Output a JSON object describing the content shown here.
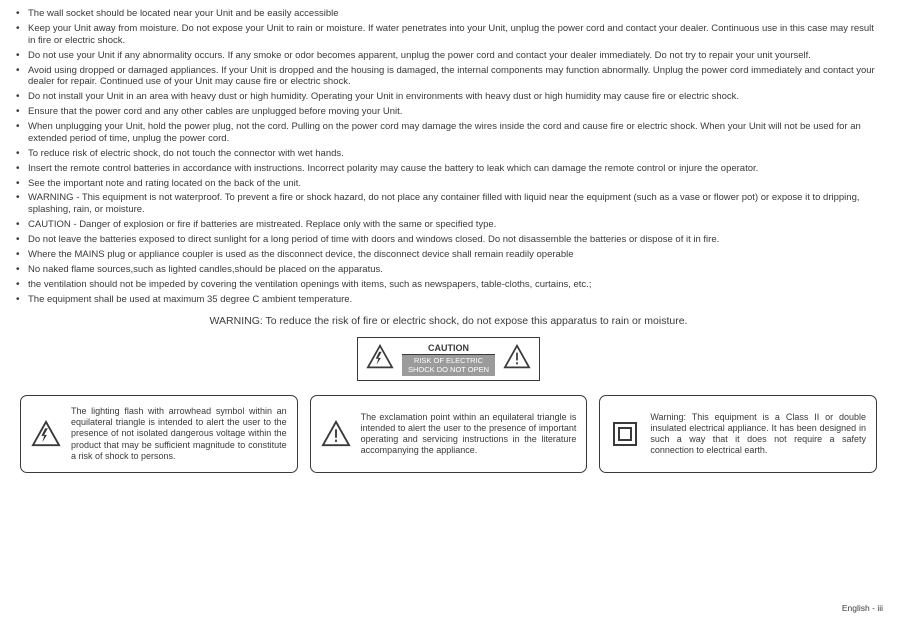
{
  "bullets": [
    "The wall socket should be located near your Unit and be easily accessible",
    "Keep your Unit away from moisture. Do not expose your Unit to rain or moisture. If water penetrates into your Unit, unplug the power cord and contact your dealer. Continuous use in this case may result in fire or electric shock.",
    "Do not use your Unit if any abnormality occurs. If any smoke or odor becomes apparent, unplug the power cord and contact your dealer immediately. Do not try to repair your unit yourself.",
    "Avoid using dropped or damaged appliances. If your Unit is dropped and the housing is damaged, the internal components may function abnormally. Unplug the power cord immediately and contact your dealer for repair. Continued use of your Unit may cause fire or electric shock.",
    "Do not install your Unit in an area with heavy dust or high humidity. Operating your Unit in environments with heavy dust or high humidity may cause fire or electric shock.",
    "Ensure that the power cord and any other cables are unplugged before moving your Unit.",
    "When unplugging your Unit, hold the power plug, not the cord. Pulling on the power cord may damage the wires inside the cord and cause fire or electric shock. When your Unit will not be used for an extended period of time, unplug the power cord.",
    "To reduce risk of electric shock, do not touch the connector with wet hands.",
    "Insert the remote control batteries in accordance with instructions. Incorrect polarity may cause the battery to leak which can damage the remote control or injure the operator.",
    "See the important note and rating located on the back of the unit.",
    "WARNING - This equipment is not waterproof. To prevent a fire or shock hazard, do not place any container filled with liquid near the equipment (such as a vase or flower pot) or expose it to dripping, splashing, rain, or moisture.",
    "CAUTION - Danger of explosion or fire if batteries are mistreated. Replace only with the same or specified type.",
    "Do not leave the batteries exposed to direct sunlight for a long period of time with doors and windows closed. Do not disassemble the batteries or dispose of it in fire.",
    "Where the MAINS plug or appliance coupler is used as the disconnect device, the disconnect device shall remain readily operable",
    "No naked flame sources,such as lighted candles,should be placed on the apparatus.",
    "the ventilation should not be impeded by covering the ventilation openings with items, such as newspapers, table-cloths, curtains, etc.;",
    "The equipment shall be used at maximum 35 degree C ambient temperature."
  ],
  "warning_line": "WARNING: To reduce the risk of fire or electric shock, do not expose this apparatus to rain or moisture.",
  "caution": {
    "title": "CAUTION",
    "sub1": "RISK OF ELECTRIC",
    "sub2": "SHOCK DO NOT OPEN"
  },
  "cards": {
    "c1": "The lighting flash with arrowhead symbol within an equilateral triangle is intended to alert the user to the presence of not isolated dangerous voltage within the product that may be sufficient magnitude to constitute a risk of shock to persons.",
    "c2": "The exclamation point within an equilateral triangle is intended to alert the user to the presence of important operating and servicing instructions in the literature accompanying the appliance.",
    "c3": "Warning: This equipment is a Class II or double insulated electrical appliance. It has been designed in such a  way that it does not require a safety connection to electrical earth."
  },
  "page": "English - iii",
  "colors": {
    "text": "#3a3a3a",
    "bg": "#ffffff",
    "band": "#9b9b9b"
  }
}
